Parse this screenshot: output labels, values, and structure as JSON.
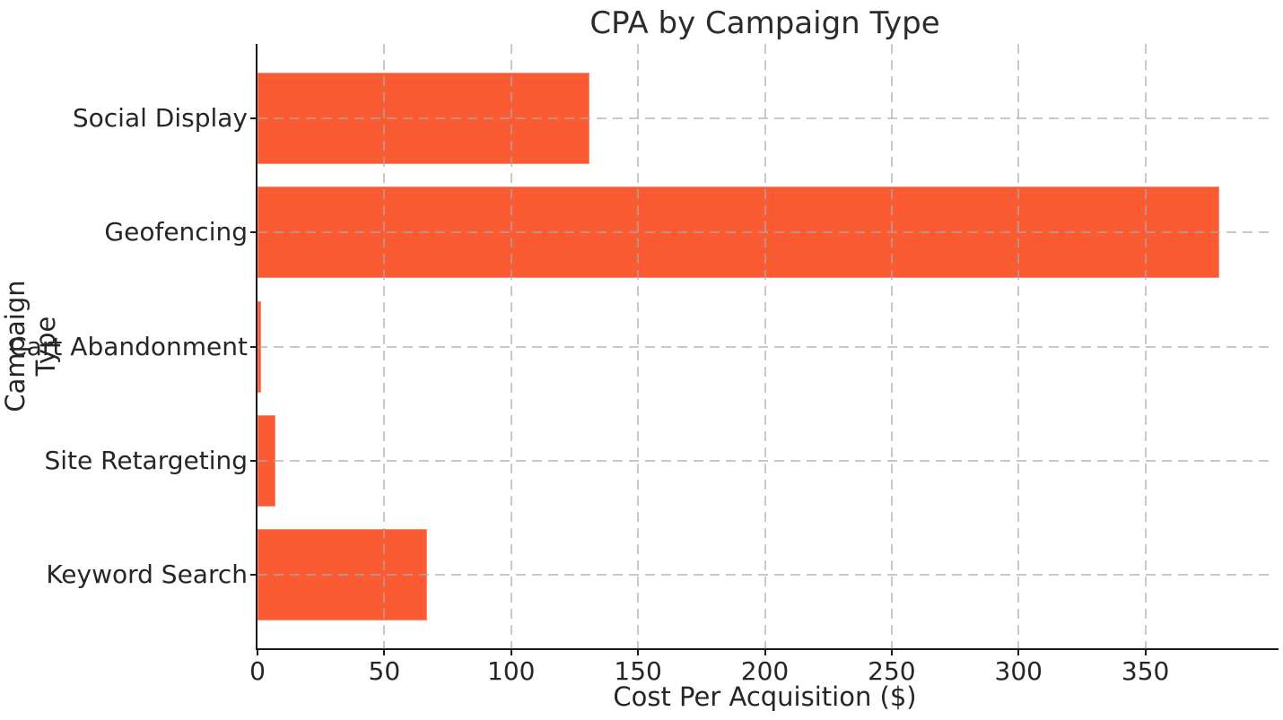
{
  "chart_data": {
    "type": "bar",
    "orientation": "horizontal",
    "title": "CPA by Campaign Type",
    "xlabel": "Cost Per Acquisition ($)",
    "ylabel": "Campaign Type",
    "categories": [
      "Social Display",
      "Geofencing",
      "Cart Abandonment",
      "Site Retargeting",
      "Keyword Search"
    ],
    "values": [
      131,
      379,
      1.3,
      7.2,
      67
    ],
    "xlim": [
      0,
      400
    ],
    "xticks": [
      0,
      50,
      100,
      150,
      200,
      250,
      300,
      350
    ],
    "bar_color": "#FB5B33",
    "bar_edge_color": "#FC8A6B",
    "grid": true,
    "grid_style": "dashed",
    "grid_axis": "both",
    "legend": null,
    "spines_visible": [
      "left",
      "bottom"
    ]
  }
}
